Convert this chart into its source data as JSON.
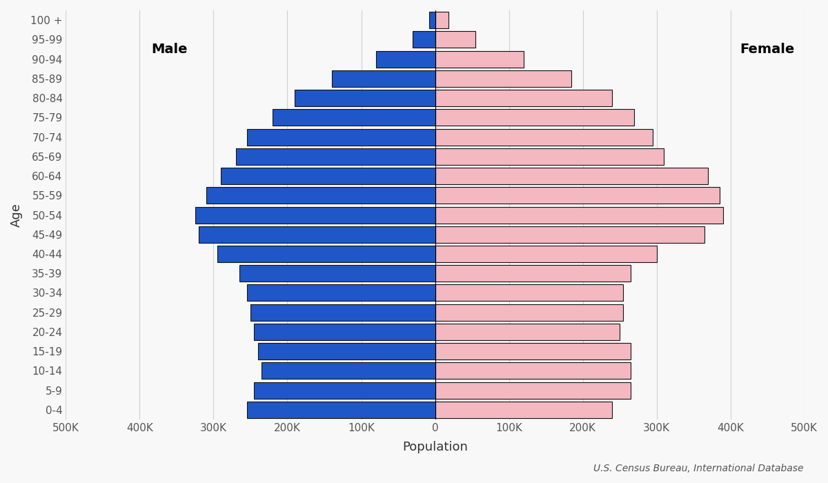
{
  "age_groups": [
    "0-4",
    "5-9",
    "10-14",
    "15-19",
    "20-24",
    "25-29",
    "30-34",
    "35-39",
    "40-44",
    "45-49",
    "50-54",
    "55-59",
    "60-64",
    "65-69",
    "70-74",
    "75-79",
    "80-84",
    "85-89",
    "90-94",
    "95-99",
    "100 +"
  ],
  "male": [
    255000,
    245000,
    235000,
    240000,
    245000,
    250000,
    255000,
    265000,
    295000,
    320000,
    325000,
    310000,
    290000,
    270000,
    255000,
    220000,
    190000,
    140000,
    80000,
    30000,
    8000
  ],
  "female": [
    240000,
    265000,
    265000,
    265000,
    250000,
    255000,
    255000,
    265000,
    300000,
    365000,
    390000,
    385000,
    370000,
    310000,
    295000,
    270000,
    240000,
    185000,
    120000,
    55000,
    18000
  ],
  "male_color": "#1f57c8",
  "female_color": "#f4b8c1",
  "bar_edge_color": "#111111",
  "bar_edge_width": 0.8,
  "xlabel": "Population",
  "ylabel": "Age",
  "male_label": "Male",
  "female_label": "Female",
  "source_text": "U.S. Census Bureau, International Database",
  "xlim": 500000,
  "grid_color": "#d0d0d0",
  "background_color": "#f8f8f8",
  "tick_label_color": "#555555",
  "axis_label_color": "#333333",
  "label_fontsize": 13,
  "tick_fontsize": 11,
  "gender_label_fontsize": 14,
  "source_fontsize": 10
}
